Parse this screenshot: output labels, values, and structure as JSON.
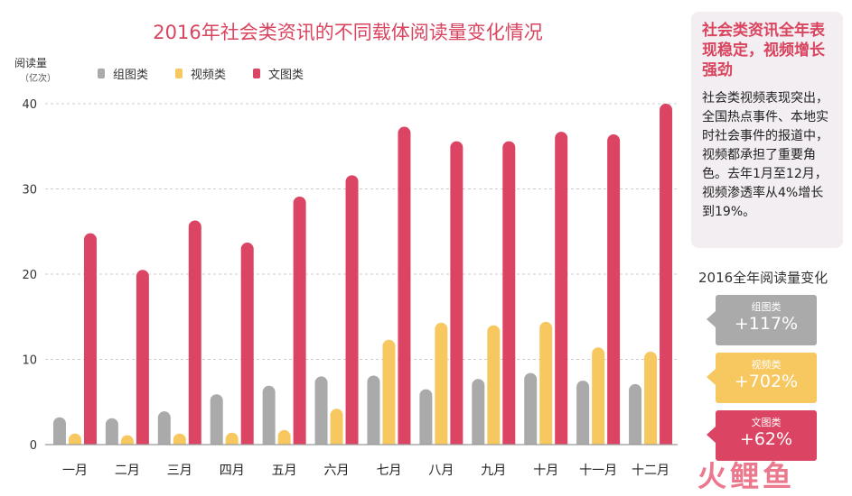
{
  "chart_data": {
    "type": "bar",
    "title": "2016年社会类资讯的不同载体阅读量变化情况",
    "ylabel": "阅读量",
    "yunit": "（亿次）",
    "ylim": [
      0,
      40
    ],
    "yticks": [
      "0",
      "10",
      "20",
      "30",
      "40"
    ],
    "grid": true,
    "legend_position": "top-left",
    "categories": [
      "一月",
      "二月",
      "三月",
      "四月",
      "五月",
      "六月",
      "七月",
      "八月",
      "九月",
      "十月",
      "十一月",
      "十二月"
    ],
    "series": [
      {
        "name": "组图类",
        "color": "#aaaaaa",
        "values": [
          3.2,
          3.1,
          3.9,
          5.9,
          6.9,
          8.0,
          8.1,
          6.5,
          7.7,
          8.4,
          7.5,
          7.1
        ]
      },
      {
        "name": "视频类",
        "color": "#f7c85f",
        "values": [
          1.3,
          1.1,
          1.3,
          1.4,
          1.7,
          4.2,
          12.3,
          14.3,
          14.0,
          14.4,
          11.4,
          10.9
        ]
      },
      {
        "name": "文图类",
        "color": "#db4462",
        "values": [
          24.8,
          20.5,
          26.3,
          23.7,
          29.1,
          31.6,
          37.3,
          35.6,
          35.6,
          36.7,
          36.4,
          40.0
        ]
      }
    ]
  },
  "sidebar": {
    "heading": "社会类资讯全年表现稳定，视频增长强劲",
    "body": "社会类视频表现突出，全国热点事件、本地实时社会事件的报道中，视频都承担了重要角色。去年1月至12月，视频渗透率从4%增长到19%。"
  },
  "annual": {
    "title": "2016全年阅读量变化",
    "items": [
      {
        "name": "组图类",
        "value": "+117%",
        "color": "#aaaaaa"
      },
      {
        "name": "视频类",
        "value": "+702%",
        "color": "#f7c85f"
      },
      {
        "name": "文图类",
        "value": "+62%",
        "color": "#db4462"
      }
    ]
  },
  "logo": {
    "text": "火鲤鱼"
  }
}
